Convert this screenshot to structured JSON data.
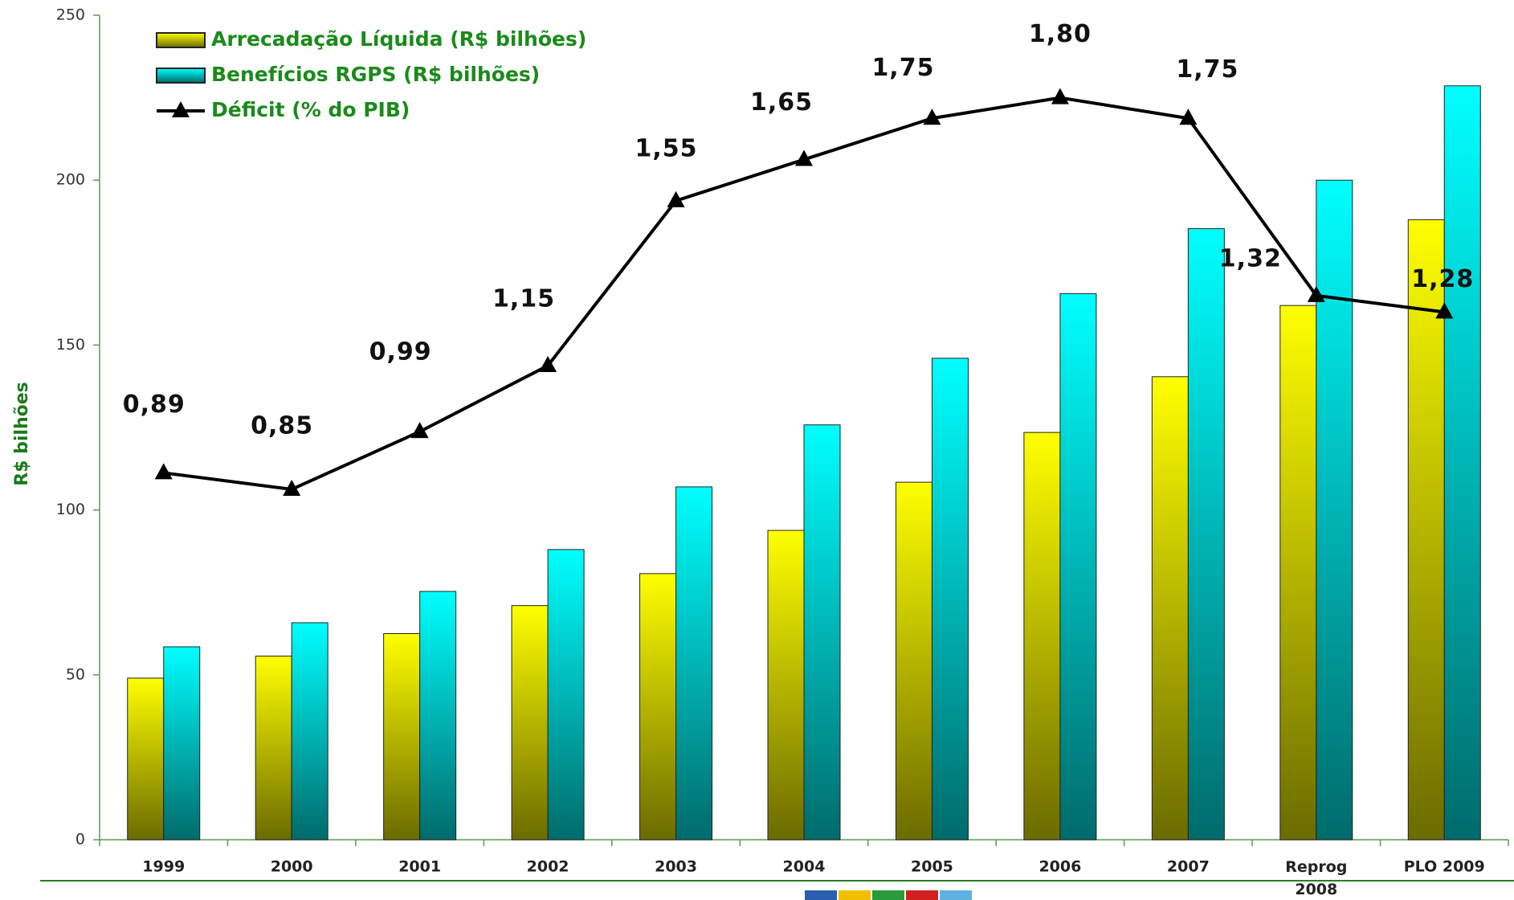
{
  "chart_data": {
    "type": "bar-line",
    "ylabel": "R$ bilhões",
    "categories": [
      "1999",
      "2000",
      "2001",
      "2002",
      "2003",
      "2004",
      "2005",
      "2006",
      "2007",
      "Reprog\n2008",
      "PLO 2009"
    ],
    "series": [
      {
        "name": "Arrecadação Líquida (R$ bilhões)",
        "type": "bar",
        "color": "#ffff00",
        "values": [
          49,
          55.7,
          62.5,
          71,
          80.7,
          93.8,
          108.4,
          123.5,
          140.4,
          162,
          188
        ]
      },
      {
        "name": "Benefícios RGPS (R$ bilhões)",
        "type": "bar",
        "color": "#00ffff",
        "values": [
          58.5,
          65.8,
          75.3,
          88,
          107,
          125.8,
          146,
          165.6,
          185.3,
          200,
          228.6
        ]
      },
      {
        "name": "Déficit (% do PIB)",
        "type": "line",
        "axis": "y2",
        "color": "#000000",
        "values": [
          0.89,
          0.85,
          0.99,
          1.15,
          1.55,
          1.65,
          1.75,
          1.8,
          1.75,
          1.32,
          1.28
        ],
        "value_labels": [
          "0,89",
          "0,85",
          "0,99",
          "1,15",
          "1,55",
          "1,65",
          "1,75",
          "1,80",
          "1,75",
          "1,32",
          "1,28"
        ]
      }
    ],
    "ylim": [
      0,
      250
    ],
    "yticks": [
      0,
      50,
      100,
      150,
      200,
      250
    ],
    "y2lim": [
      0,
      2
    ],
    "grid": false,
    "legend": "upper left"
  }
}
